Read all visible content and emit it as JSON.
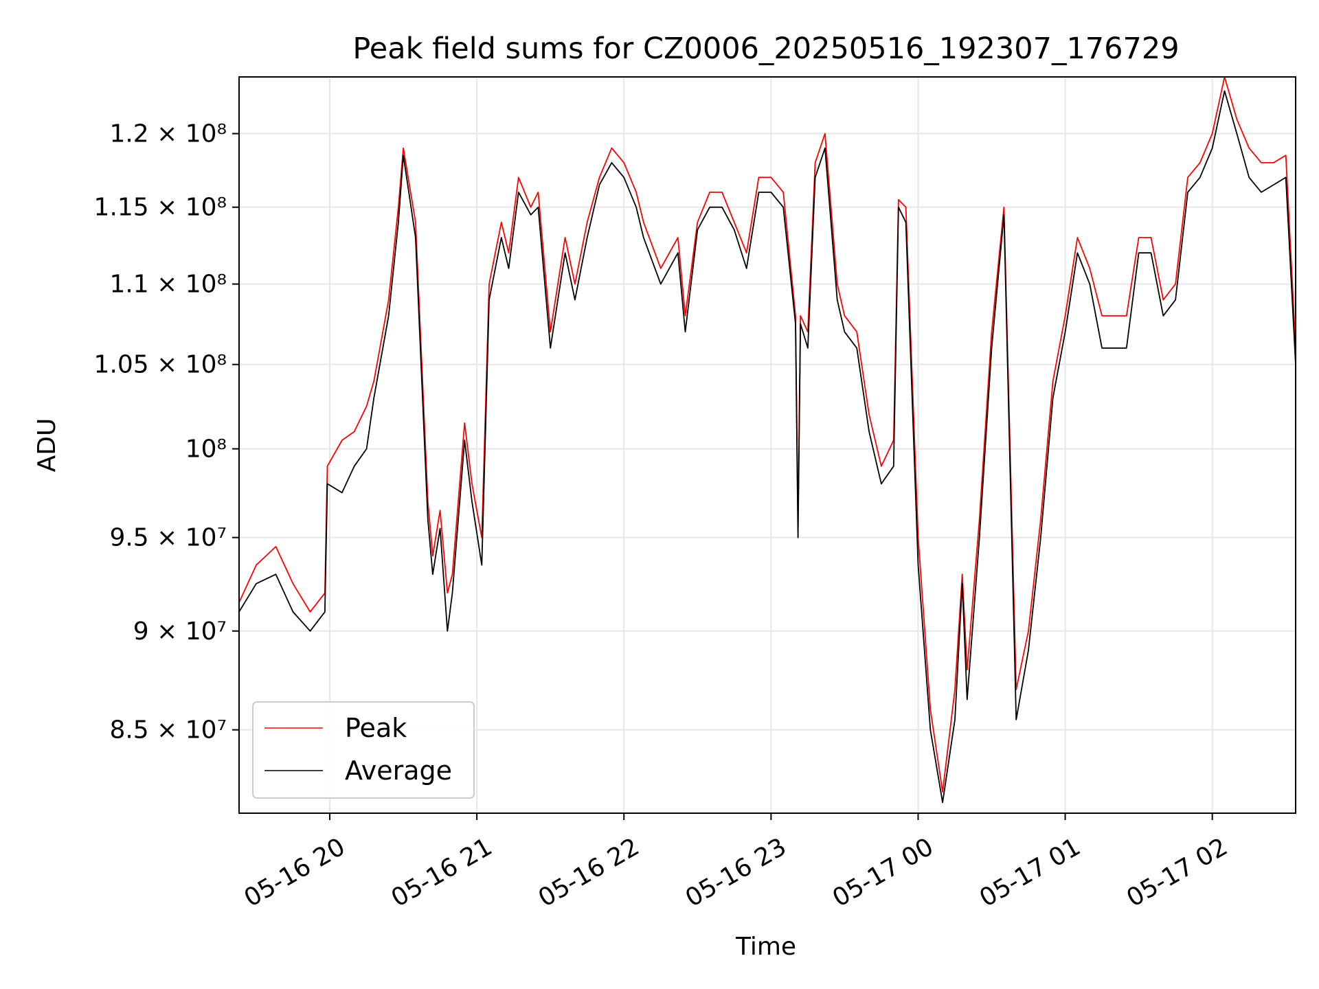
{
  "chart_data": {
    "type": "line",
    "title": "Peak field sums for CZ0006_20250516_192307_176729",
    "xlabel": "Time",
    "ylabel": "ADU",
    "yscale": "log",
    "grid": true,
    "legend_placement": "lower-left",
    "xlim": [
      "2025-05-16 19:23",
      "2025-05-17 02:34"
    ],
    "ylim": [
      81000000,
      124000000
    ],
    "x_ticks": [
      "05-16 20",
      "05-16 21",
      "05-16 22",
      "05-16 23",
      "05-17 00",
      "05-17 01",
      "05-17 02"
    ],
    "y_ticks": [
      {
        "value": 85000000,
        "label": "8.5 × 10⁷"
      },
      {
        "value": 90000000,
        "label": "9 × 10⁷"
      },
      {
        "value": 95000000,
        "label": "9.5 × 10⁷"
      },
      {
        "value": 100000000,
        "label": "10⁸"
      },
      {
        "value": 105000000,
        "label": "1.05 × 10⁸"
      },
      {
        "value": 110000000,
        "label": "1.1 × 10⁸"
      },
      {
        "value": 115000000,
        "label": "1.15 × 10⁸"
      },
      {
        "value": 120000000,
        "label": "1.2 × 10⁸"
      }
    ],
    "series": [
      {
        "name": "Peak",
        "color": "#ff0000",
        "x": [
          "2025-05-16 19:23",
          "2025-05-16 19:30",
          "2025-05-16 19:38",
          "2025-05-16 19:45",
          "2025-05-16 19:52",
          "2025-05-16 19:58",
          "2025-05-16 19:59",
          "2025-05-16 20:05",
          "2025-05-16 20:10",
          "2025-05-16 20:15",
          "2025-05-16 20:18",
          "2025-05-16 20:24",
          "2025-05-16 20:28",
          "2025-05-16 20:30",
          "2025-05-16 20:35",
          "2025-05-16 20:40",
          "2025-05-16 20:42",
          "2025-05-16 20:45",
          "2025-05-16 20:48",
          "2025-05-16 20:50",
          "2025-05-16 20:55",
          "2025-05-16 20:58",
          "2025-05-16 21:02",
          "2025-05-16 21:05",
          "2025-05-16 21:10",
          "2025-05-16 21:13",
          "2025-05-16 21:17",
          "2025-05-16 21:22",
          "2025-05-16 21:25",
          "2025-05-16 21:30",
          "2025-05-16 21:36",
          "2025-05-16 21:40",
          "2025-05-16 21:45",
          "2025-05-16 21:50",
          "2025-05-16 21:55",
          "2025-05-16 22:00",
          "2025-05-16 22:05",
          "2025-05-16 22:08",
          "2025-05-16 22:15",
          "2025-05-16 22:22",
          "2025-05-16 22:25",
          "2025-05-16 22:30",
          "2025-05-16 22:35",
          "2025-05-16 22:40",
          "2025-05-16 22:45",
          "2025-05-16 22:50",
          "2025-05-16 22:55",
          "2025-05-16 23:00",
          "2025-05-16 23:05",
          "2025-05-16 23:10",
          "2025-05-16 23:11",
          "2025-05-16 23:12",
          "2025-05-16 23:15",
          "2025-05-16 23:18",
          "2025-05-16 23:22",
          "2025-05-16 23:27",
          "2025-05-16 23:30",
          "2025-05-16 23:35",
          "2025-05-16 23:40",
          "2025-05-16 23:45",
          "2025-05-16 23:50",
          "2025-05-16 23:52",
          "2025-05-16 23:55",
          "2025-05-17 00:00",
          "2025-05-17 00:05",
          "2025-05-17 00:10",
          "2025-05-17 00:15",
          "2025-05-17 00:18",
          "2025-05-17 00:20",
          "2025-05-17 00:25",
          "2025-05-17 00:30",
          "2025-05-17 00:35",
          "2025-05-17 00:40",
          "2025-05-17 00:45",
          "2025-05-17 00:50",
          "2025-05-17 00:55",
          "2025-05-17 01:00",
          "2025-05-17 01:05",
          "2025-05-17 01:10",
          "2025-05-17 01:15",
          "2025-05-17 01:20",
          "2025-05-17 01:25",
          "2025-05-17 01:30",
          "2025-05-17 01:35",
          "2025-05-17 01:40",
          "2025-05-17 01:45",
          "2025-05-17 01:50",
          "2025-05-17 01:55",
          "2025-05-17 02:00",
          "2025-05-17 02:05",
          "2025-05-17 02:10",
          "2025-05-17 02:15",
          "2025-05-17 02:20",
          "2025-05-17 02:25",
          "2025-05-17 02:30",
          "2025-05-17 02:34"
        ],
        "values": [
          91500000,
          93500000,
          94500000,
          92500000,
          91000000,
          92000000,
          99000000,
          100500000,
          101000000,
          102500000,
          104000000,
          109000000,
          115000000,
          119000000,
          114000000,
          97000000,
          94000000,
          96500000,
          92000000,
          93000000,
          101500000,
          98000000,
          95000000,
          110000000,
          114000000,
          112000000,
          117000000,
          115000000,
          116000000,
          107000000,
          113000000,
          110000000,
          114000000,
          117000000,
          119000000,
          118000000,
          116000000,
          114000000,
          111000000,
          113000000,
          108000000,
          114000000,
          116000000,
          116000000,
          114000000,
          112000000,
          117000000,
          117000000,
          116000000,
          108000000,
          95500000,
          108000000,
          107000000,
          118000000,
          120000000,
          110000000,
          108000000,
          107000000,
          102000000,
          99000000,
          100500000,
          115500000,
          115000000,
          95000000,
          86000000,
          82000000,
          87000000,
          93000000,
          88000000,
          96000000,
          107000000,
          115000000,
          87000000,
          90000000,
          96000000,
          104000000,
          108000000,
          113000000,
          111000000,
          108000000,
          108000000,
          108000000,
          113000000,
          113000000,
          109000000,
          110000000,
          117000000,
          118000000,
          120000000,
          124000000,
          121000000,
          119000000,
          118000000,
          118000000,
          118500000,
          106000000
        ]
      },
      {
        "name": "Average",
        "color": "#000000",
        "x": [
          "2025-05-16 19:23",
          "2025-05-16 19:30",
          "2025-05-16 19:38",
          "2025-05-16 19:45",
          "2025-05-16 19:52",
          "2025-05-16 19:58",
          "2025-05-16 19:59",
          "2025-05-16 20:05",
          "2025-05-16 20:10",
          "2025-05-16 20:15",
          "2025-05-16 20:18",
          "2025-05-16 20:24",
          "2025-05-16 20:28",
          "2025-05-16 20:30",
          "2025-05-16 20:35",
          "2025-05-16 20:40",
          "2025-05-16 20:42",
          "2025-05-16 20:45",
          "2025-05-16 20:48",
          "2025-05-16 20:50",
          "2025-05-16 20:55",
          "2025-05-16 20:58",
          "2025-05-16 21:02",
          "2025-05-16 21:05",
          "2025-05-16 21:10",
          "2025-05-16 21:13",
          "2025-05-16 21:17",
          "2025-05-16 21:22",
          "2025-05-16 21:25",
          "2025-05-16 21:30",
          "2025-05-16 21:36",
          "2025-05-16 21:40",
          "2025-05-16 21:45",
          "2025-05-16 21:50",
          "2025-05-16 21:55",
          "2025-05-16 22:00",
          "2025-05-16 22:05",
          "2025-05-16 22:08",
          "2025-05-16 22:15",
          "2025-05-16 22:22",
          "2025-05-16 22:25",
          "2025-05-16 22:30",
          "2025-05-16 22:35",
          "2025-05-16 22:40",
          "2025-05-16 22:45",
          "2025-05-16 22:50",
          "2025-05-16 22:55",
          "2025-05-16 23:00",
          "2025-05-16 23:05",
          "2025-05-16 23:10",
          "2025-05-16 23:11",
          "2025-05-16 23:12",
          "2025-05-16 23:15",
          "2025-05-16 23:18",
          "2025-05-16 23:22",
          "2025-05-16 23:27",
          "2025-05-16 23:30",
          "2025-05-16 23:35",
          "2025-05-16 23:40",
          "2025-05-16 23:45",
          "2025-05-16 23:50",
          "2025-05-16 23:52",
          "2025-05-16 23:55",
          "2025-05-17 00:00",
          "2025-05-17 00:05",
          "2025-05-17 00:10",
          "2025-05-17 00:15",
          "2025-05-17 00:18",
          "2025-05-17 00:20",
          "2025-05-17 00:25",
          "2025-05-17 00:30",
          "2025-05-17 00:35",
          "2025-05-17 00:40",
          "2025-05-17 00:45",
          "2025-05-17 00:50",
          "2025-05-17 00:55",
          "2025-05-17 01:00",
          "2025-05-17 01:05",
          "2025-05-17 01:10",
          "2025-05-17 01:15",
          "2025-05-17 01:20",
          "2025-05-17 01:25",
          "2025-05-17 01:30",
          "2025-05-17 01:35",
          "2025-05-17 01:40",
          "2025-05-17 01:45",
          "2025-05-17 01:50",
          "2025-05-17 01:55",
          "2025-05-17 02:00",
          "2025-05-17 02:05",
          "2025-05-17 02:10",
          "2025-05-17 02:15",
          "2025-05-17 02:20",
          "2025-05-17 02:25",
          "2025-05-17 02:30",
          "2025-05-17 02:34"
        ],
        "values": [
          91000000,
          92500000,
          93000000,
          91000000,
          90000000,
          91000000,
          98000000,
          97500000,
          99000000,
          100000000,
          103000000,
          108000000,
          114000000,
          118500000,
          113000000,
          96000000,
          93000000,
          95500000,
          90000000,
          92000000,
          100500000,
          97000000,
          93500000,
          109000000,
          113000000,
          111000000,
          116000000,
          114500000,
          115000000,
          106000000,
          112000000,
          109000000,
          113000000,
          116500000,
          118000000,
          117000000,
          115000000,
          113000000,
          110000000,
          112000000,
          107000000,
          113500000,
          115000000,
          115000000,
          113500000,
          111000000,
          116000000,
          116000000,
          115000000,
          107500000,
          95000000,
          107500000,
          106000000,
          117000000,
          119000000,
          109000000,
          107000000,
          106000000,
          101000000,
          98000000,
          99000000,
          115000000,
          114000000,
          93500000,
          85000000,
          81500000,
          85500000,
          92500000,
          86500000,
          95000000,
          106000000,
          114500000,
          85500000,
          89000000,
          95000000,
          103000000,
          107000000,
          112000000,
          110000000,
          106000000,
          106000000,
          106000000,
          112000000,
          112000000,
          108000000,
          109000000,
          116000000,
          117000000,
          119000000,
          123000000,
          120000000,
          117000000,
          116000000,
          116500000,
          117000000,
          105000000
        ]
      }
    ]
  }
}
